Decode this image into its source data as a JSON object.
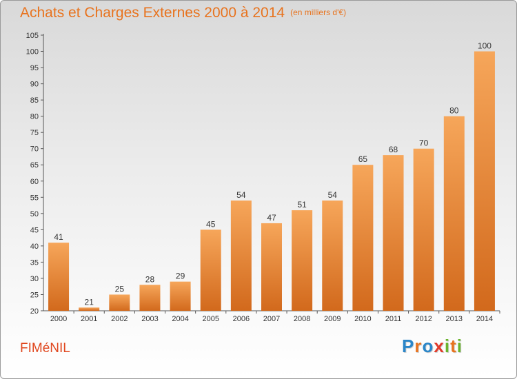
{
  "title": "Achats et Charges Externes 2000 à 2014",
  "unit_note": "(en milliers d'€)",
  "commune": "FIMéNIL",
  "logo": {
    "letters": [
      {
        "ch": "P",
        "color": "#2b86c8"
      },
      {
        "ch": "r",
        "color": "#e8731e"
      },
      {
        "ch": "o",
        "color": "#2b86c8"
      },
      {
        "ch": "x",
        "color": "#e03a2a"
      },
      {
        "ch": "i",
        "color": "#6ab42d"
      },
      {
        "ch": "t",
        "color": "#e8731e"
      },
      {
        "ch": "i",
        "color": "#6ab42d"
      }
    ]
  },
  "colors": {
    "bar_top": "#f6a65a",
    "bar_bottom": "#d2691c",
    "title": "#e8731e",
    "commune": "#e0471e"
  },
  "chart_data": {
    "type": "bar",
    "title": "Achats et Charges Externes 2000 à 2014",
    "subtitle": "(en milliers d'€)",
    "xlabel": "",
    "ylabel": "",
    "categories": [
      "2000",
      "2001",
      "2002",
      "2003",
      "2004",
      "2005",
      "2006",
      "2007",
      "2008",
      "2009",
      "2010",
      "2011",
      "2012",
      "2013",
      "2014"
    ],
    "values": [
      41,
      21,
      25,
      28,
      29,
      45,
      54,
      47,
      51,
      54,
      65,
      68,
      70,
      80,
      100
    ],
    "ylim": [
      20,
      105
    ],
    "yticks": [
      20,
      25,
      30,
      35,
      40,
      45,
      50,
      55,
      60,
      65,
      70,
      75,
      80,
      85,
      90,
      95,
      100,
      105
    ],
    "grid": false,
    "legend": "none"
  }
}
